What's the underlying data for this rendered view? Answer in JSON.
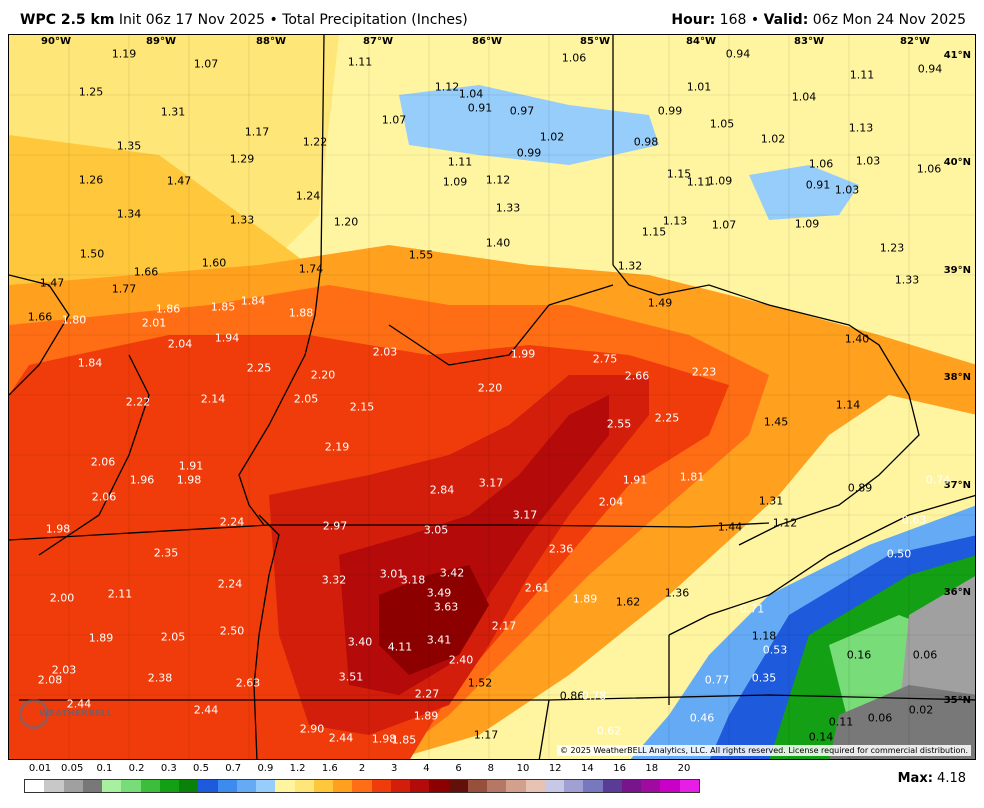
{
  "header": {
    "model": "WPC 2.5 km",
    "init": "Init 06z 17 Nov 2025",
    "bullet": "•",
    "product": "Total Precipitation (Inches)",
    "hour_label": "Hour:",
    "hour_value": "168",
    "valid_label": "Valid:",
    "valid_value": "06z Mon 24 Nov 2025"
  },
  "map": {
    "lon_labels": [
      "90°W",
      "89°W",
      "88°W",
      "87°W",
      "86°W",
      "85°W",
      "84°W",
      "83°W",
      "82°W"
    ],
    "lat_labels": [
      "41°N",
      "40°N",
      "39°N",
      "38°N",
      "37°N",
      "36°N",
      "35°N"
    ],
    "copyright": "© 2025 WeatherBELL Analytics, LLC. All rights reserved. License required for commercial distribution.",
    "logo_text": "WEATHERBELL",
    "values": [
      "1.19",
      "1.07",
      "1.11",
      "1.06",
      "0.94",
      "0.94",
      "1.25",
      "1.12",
      "1.04",
      "0.91",
      "0.97",
      "1.01",
      "1.04",
      "1.11",
      "1.31",
      "0.99",
      "1.05",
      "1.07",
      "1.13",
      "1.35",
      "1.17",
      "1.22",
      "1.02",
      "0.98",
      "1.02",
      "1.29",
      "0.99",
      "1.06",
      "1.03",
      "1.06",
      "1.26",
      "1.47",
      "1.11",
      "1.09",
      "1.12",
      "1.15",
      "1.11",
      "1.09",
      "0.91",
      "1.03",
      "1.34",
      "1.24",
      "1.33",
      "1.33",
      "1.20",
      "1.13",
      "1.07",
      "1.09",
      "1.15",
      "1.50",
      "1.40",
      "1.23",
      "1.55",
      "1.66",
      "1.60",
      "1.74",
      "1.32",
      "1.33",
      "1.47",
      "1.77",
      "1.49",
      "1.85",
      "1.84",
      "1.86",
      "1.88",
      "1.66",
      "1.80",
      "2.01",
      "1.94",
      "2.04",
      "1.40",
      "2.03",
      "1.99",
      "2.75",
      "1.84",
      "2.25",
      "2.20",
      "2.66",
      "2.23",
      "2.22",
      "2.14",
      "2.05",
      "2.20",
      "2.15",
      "1.14",
      "2.55",
      "2.25",
      "1.45",
      "2.19",
      "2.06",
      "1.91",
      "1.96",
      "1.98",
      "2.84",
      "3.17",
      "1.81",
      "1.91",
      "0.89",
      "0.74",
      "2.06",
      "2.04",
      "1.31",
      "2.24",
      "3.17",
      "1.12",
      "0.63",
      "1.98",
      "2.97",
      "3.05",
      "1.44",
      "2.35",
      "2.36",
      "0.50",
      "3.32",
      "3.01",
      "3.18",
      "3.42",
      "2.24",
      "2.61",
      "2.11",
      "3.49",
      "1.89",
      "1.62",
      "1.36",
      "2.00",
      "3.63",
      "0.71",
      "2.05",
      "2.50",
      "2.17",
      "1.89",
      "3.40",
      "3.41",
      "1.18",
      "0.53",
      "0.16",
      "0.06",
      "4.11",
      "2.40",
      "2.03",
      "2.38",
      "3.51",
      "2.08",
      "2.63",
      "1.52",
      "0.77",
      "0.35",
      "2.27",
      "0.86",
      "0.78",
      "2.44",
      "2.44",
      "1.89",
      "0.46",
      "0.02",
      "0.11",
      "0.06",
      "0.62",
      "2.90",
      "1.17",
      "2.44",
      "1.98",
      "1.85",
      "0.14"
    ]
  },
  "legend": {
    "ticks": [
      "0.01",
      "0.05",
      "0.1",
      "0.2",
      "0.3",
      "0.5",
      "0.7",
      "0.9",
      "1.2",
      "1.6",
      "2",
      "3",
      "4",
      "6",
      "8",
      "10",
      "12",
      "14",
      "16",
      "18",
      "20"
    ],
    "colors": [
      "#ffffff",
      "#c8c8c8",
      "#a0a0a0",
      "#787878",
      "#a8f0a0",
      "#78dc78",
      "#3cbe3c",
      "#14a014",
      "#0a820a",
      "#1e5adc",
      "#3c8cf0",
      "#64aaf5",
      "#96cdfa",
      "#fff5a0",
      "#ffe678",
      "#ffc83c",
      "#ffa01e",
      "#ff6e14",
      "#f03c0a",
      "#d21e0a",
      "#b40a0a",
      "#8c0000",
      "#64100a",
      "#96503c",
      "#b47864",
      "#d2a08c",
      "#e6c3b4",
      "#c8c8e6",
      "#a0a0d2",
      "#7878be",
      "#5a3c96",
      "#78148c",
      "#a00aa0",
      "#c800c8",
      "#e61ee6"
    ],
    "max_label": "Max:",
    "max_value": "4.18"
  }
}
